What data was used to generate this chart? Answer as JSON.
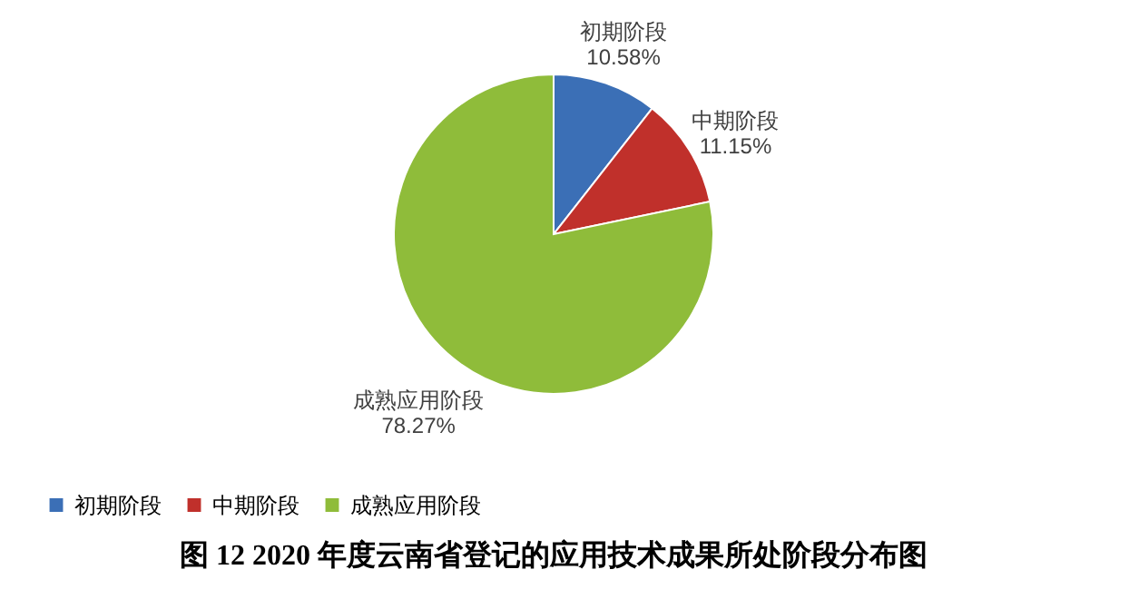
{
  "chart_data": {
    "type": "pie",
    "title": "图 12 2020 年度云南省登记的应用技术成果所处阶段分布图",
    "categories": [
      "初期阶段",
      "中期阶段",
      "成熟应用阶段"
    ],
    "values": [
      10.58,
      11.15,
      78.27
    ],
    "value_labels": [
      "10.58%",
      "11.15%",
      "78.27%"
    ],
    "colors": [
      "#3b6fb6",
      "#c0302b",
      "#8fbc3a"
    ],
    "legend": "bottom"
  }
}
